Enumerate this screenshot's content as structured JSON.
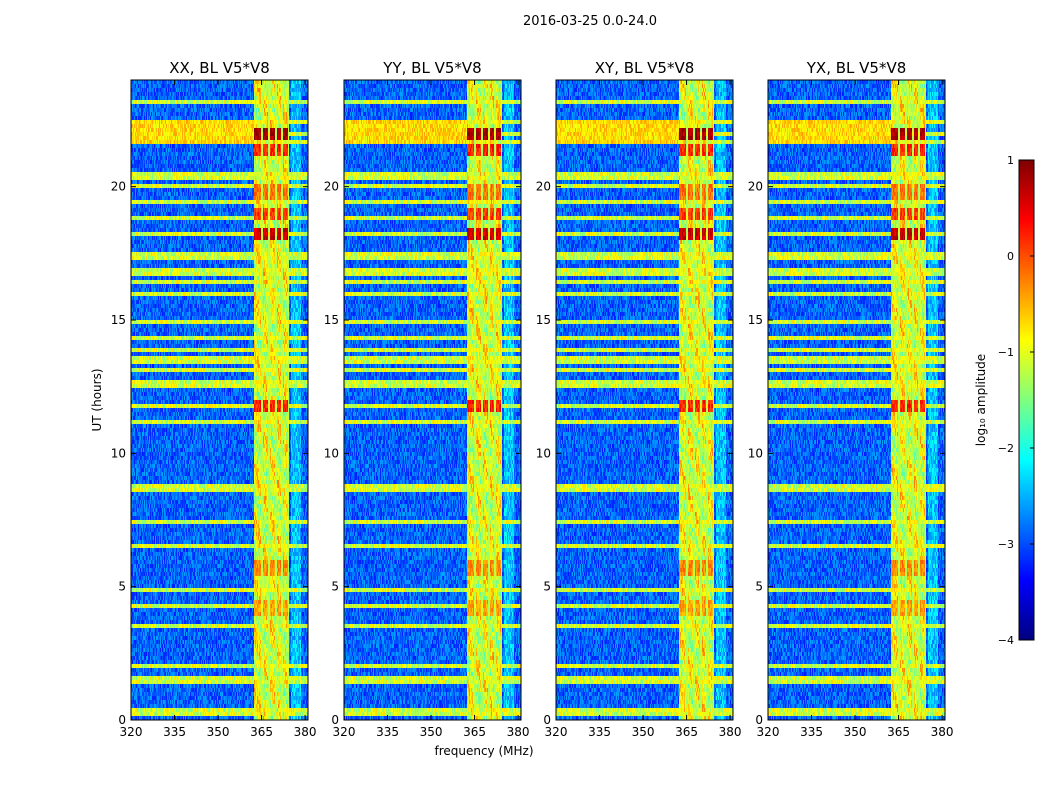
{
  "chart_data": {
    "type": "heatmap",
    "suptitle": "2016-03-25 0.0-24.0",
    "xlabel": "frequency (MHz)",
    "ylabel": "UT (hours)",
    "xlim": [
      320,
      381
    ],
    "ylim": [
      0,
      24
    ],
    "xticks": [
      "320",
      "335",
      "350",
      "365",
      "380"
    ],
    "xtick_values": [
      320,
      335,
      350,
      365,
      380
    ],
    "yticks": [
      "0",
      "5",
      "10",
      "15",
      "20"
    ],
    "ytick_values": [
      0,
      5,
      10,
      15,
      20
    ],
    "panels": [
      {
        "title": "XX, BL V5*V8"
      },
      {
        "title": "YY, BL V5*V8"
      },
      {
        "title": "XY, BL V5*V8"
      },
      {
        "title": "YX, BL V5*V8"
      }
    ],
    "colorbar": {
      "label": "log₁₀ amplitude",
      "range": [
        -4,
        1
      ],
      "ticks": [
        "1",
        "0",
        "−1",
        "−2",
        "−3",
        "−4"
      ],
      "tick_values": [
        1,
        0,
        -1,
        -2,
        -3,
        -4
      ],
      "colormap": [
        "#00007f",
        "#0000ff",
        "#007fff",
        "#00ffff",
        "#7fff7f",
        "#ffff00",
        "#ff7f00",
        "#ff0000",
        "#7f0000"
      ]
    },
    "baseline_level": -2.9,
    "rfi_band_mhz": [
      362.5,
      374.5
    ],
    "rfi_band_level": -1.0,
    "rfi_gaps_mhz": [
      365.2,
      367.6,
      370.0,
      372.1,
      374.5
    ],
    "bright_events_ut": [
      {
        "ut": 18.2,
        "level": 0.6
      },
      {
        "ut": 19.0,
        "level": 0.1
      },
      {
        "ut": 19.8,
        "level": -0.2
      },
      {
        "ut": 21.4,
        "level": 0.2
      },
      {
        "ut": 22.0,
        "level": 0.8
      },
      {
        "ut": 11.8,
        "level": 0.2
      },
      {
        "ut": 5.7,
        "level": -0.3
      },
      {
        "ut": 4.2,
        "level": -0.4
      }
    ],
    "broadband_rfi_ut": [
      0.3,
      0.4,
      1.5,
      2.0,
      3.5,
      4.3,
      4.9,
      6.5,
      7.4,
      8.7,
      11.2,
      11.8,
      12.6,
      13.1,
      13.5,
      13.9,
      14.3,
      14.9,
      16.0,
      16.4,
      16.8,
      17.4,
      18.2,
      18.8,
      19.4,
      20.0,
      20.4,
      21.7,
      22.0,
      22.4,
      23.2
    ]
  }
}
